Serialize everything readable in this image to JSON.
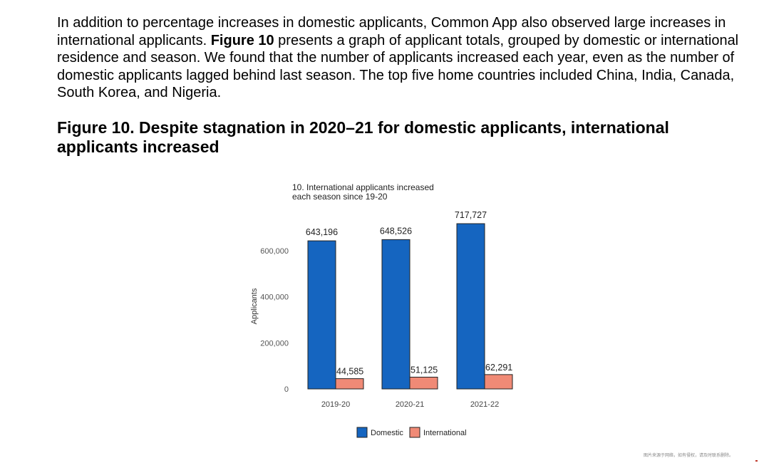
{
  "intro": {
    "part1": "In addition to percentage increases in domestic applicants, Common App also observed large increases in international applicants. ",
    "figure_ref": "Figure 10",
    "part2": " presents a graph of applicant totals, grouped by domestic or international residence and season. We found that the number of applicants increased each year, even as the number of domestic applicants lagged behind last season. The top five home countries included China, India, Canada, South Korea, and Nigeria."
  },
  "figure_title": "Figure 10. Despite stagnation in 2020–21 for domestic applicants, international applicants increased",
  "footer_note": "图片来源于网络，如有侵权，请及时联系删除。",
  "chart_data": {
    "type": "bar",
    "title_lines": [
      "10. International applicants increased",
      "each season since 19-20"
    ],
    "categories": [
      "2019-20",
      "2020-21",
      "2021-22"
    ],
    "series": [
      {
        "name": "Domestic",
        "color": "#1565c0",
        "values": [
          643196,
          648526,
          717727
        ],
        "labels": [
          "643,196",
          "648,526",
          "717,727"
        ]
      },
      {
        "name": "International",
        "color": "#f08a76",
        "values": [
          44585,
          51125,
          62291
        ],
        "labels": [
          "44,585",
          "51,125",
          "62,291"
        ]
      }
    ],
    "ylabel": "Applicants",
    "yticks": [
      0,
      200000,
      400000,
      600000
    ],
    "ytick_labels": [
      "0",
      "200,000",
      "400,000",
      "600,000"
    ],
    "ylim": [
      0,
      720000
    ],
    "grid": false,
    "legend_position": "bottom"
  }
}
